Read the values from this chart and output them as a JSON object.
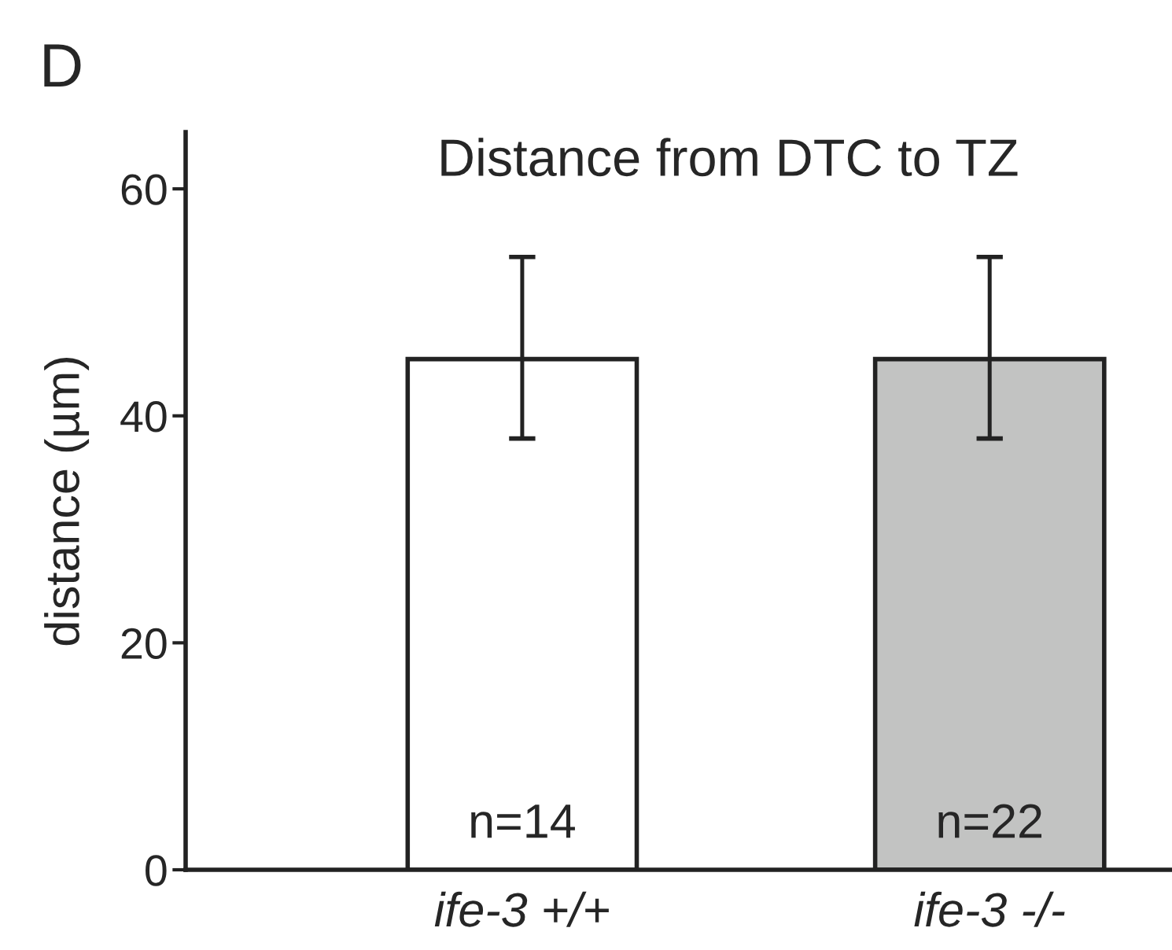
{
  "chart_data": {
    "type": "bar",
    "title": "Distance from DTC to TZ",
    "ylabel": "distance (µm)",
    "categories": [
      "ife-3 +/+",
      "ife-3 -/-"
    ],
    "values": [
      45,
      45
    ],
    "colors": [
      "#ffffff",
      "#c2c3c2"
    ],
    "errors": [
      [
        38,
        54
      ],
      [
        38,
        54
      ]
    ],
    "ylim": [
      0,
      65
    ],
    "yticks": [
      0,
      20,
      40,
      60
    ],
    "grid": false,
    "legend": false,
    "annotations": [
      "D",
      "n=14",
      "n=22"
    ]
  }
}
